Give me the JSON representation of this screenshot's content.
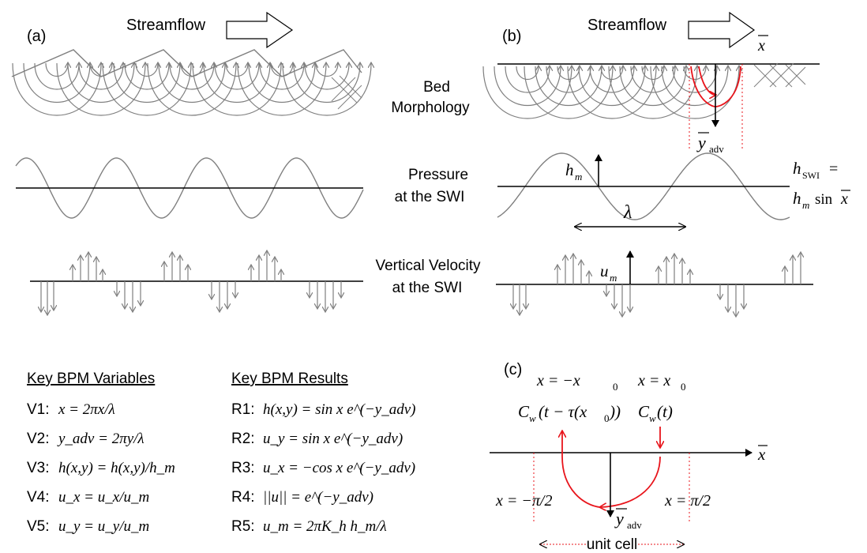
{
  "panel_labels": {
    "a": "(a)",
    "b": "(b)",
    "c": "(c)"
  },
  "streamflow_label": "Streamflow",
  "row_labels": {
    "bed_1": "Bed",
    "bed_2": "Morphology",
    "pressure_1": "Pressure",
    "pressure_2": "at the SWI",
    "velocity_1": "Vertical Velocity",
    "velocity_2": "at the SWI"
  },
  "panel_b": {
    "x_axis": "x",
    "y_axis": "y",
    "y_sub": "adv",
    "hm": "h",
    "hm_sub": "m",
    "lambda": "λ",
    "hswi_1": "h",
    "hswi_sub": "SWI",
    "hswi_eq": "=",
    "hswi_2": "h",
    "hswi_2_sub": "m",
    "hswi_2_rest": "sin",
    "hswi_2_x": "x",
    "um": "u",
    "um_sub": "m"
  },
  "variables": {
    "heading": "Key BPM Variables",
    "items": [
      {
        "tag": "V1:",
        "expr": "x = 2πx/λ"
      },
      {
        "tag": "V2:",
        "expr": "y_adv = 2πy/λ"
      },
      {
        "tag": "V3:",
        "expr": "h(x,y) = h(x,y)/h_m"
      },
      {
        "tag": "V4:",
        "expr": "u_x = u_x/u_m"
      },
      {
        "tag": "V5:",
        "expr": "u_y = u_y/u_m"
      }
    ]
  },
  "results": {
    "heading": "Key BPM Results",
    "items": [
      {
        "tag": "R1:",
        "expr": "h(x,y) = sin x e^(−y_adv)"
      },
      {
        "tag": "R2:",
        "expr": "u_y = sin x e^(−y_adv)"
      },
      {
        "tag": "R3:",
        "expr": "u_x = −cos x e^(−y_adv)"
      },
      {
        "tag": "R4:",
        "expr": "||u|| = e^(−y_adv)"
      },
      {
        "tag": "R5:",
        "expr": "u_m = 2πK_h h_m/λ"
      }
    ]
  },
  "panel_c": {
    "left_top": "x = −x",
    "left_top_sub": "0",
    "right_top": "x = x",
    "right_top_sub": "0",
    "left_conc": "C",
    "left_conc_sub": "w",
    "left_conc_rest": "(t − τ(x",
    "left_conc_sub2": "0",
    "left_conc_end": "))",
    "right_conc": "C",
    "right_conc_sub": "w",
    "right_conc_rest": "(t)",
    "left_bound": "x = −π/2",
    "right_bound": "x = π/2",
    "x_axis": "x",
    "y_axis": "y",
    "y_sub": "adv",
    "unit_cell": "unit cell"
  },
  "colors": {
    "accent": "#e8141b",
    "gray": "#7f7f7f",
    "ink": "#000000"
  }
}
